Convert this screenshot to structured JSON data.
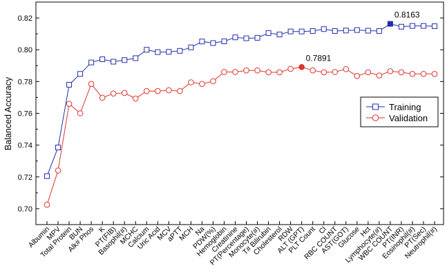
{
  "chart_data": {
    "type": "line",
    "ylabel": "Balanced Accuracy",
    "xlabel": "",
    "ylim": [
      0.69,
      0.83
    ],
    "yticks": [
      0.7,
      0.72,
      0.74,
      0.76,
      0.78,
      0.8,
      0.82
    ],
    "ytick_labels": [
      "0.70",
      "0.72",
      "0.74",
      "0.76",
      "0.78",
      "0.80",
      "0.82"
    ],
    "categories": [
      "Albumin",
      "MPV",
      "Total Protein",
      "BUN",
      "Alk# Phos",
      "K",
      "PT(FIB)",
      "Basophil(#)",
      "MCHC",
      "Calcium",
      "Uric Acid",
      "MCV",
      "aPTT",
      "MCH",
      "Na",
      "PDW(%)",
      "Hemoglobin",
      "Creatinine",
      "PT(Percentage)",
      "Monocyte(#)",
      "T# Bilirubin",
      "Cholesterol",
      "RDW",
      "ALT (GPT)",
      "PLT Count",
      "Cl",
      "RBC COUNT",
      "AST(GOT)",
      "Glucose",
      "Hct",
      "Lymphocyte(#)",
      "WBC COUNT",
      "PT(INR)",
      "Eosinophil(#)",
      "PT(Sec)",
      "Neutrophil(#)"
    ],
    "series": [
      {
        "name": "Training",
        "color": "#1f2fa8",
        "marker": "square",
        "values": [
          0.7205,
          0.7385,
          0.778,
          0.7848,
          0.792,
          0.794,
          0.7925,
          0.7935,
          0.7947,
          0.8,
          0.7985,
          0.7987,
          0.7993,
          0.8015,
          0.8052,
          0.8042,
          0.8053,
          0.8078,
          0.8072,
          0.8075,
          0.8105,
          0.8096,
          0.8115,
          0.8115,
          0.8118,
          0.813,
          0.8118,
          0.8121,
          0.8124,
          0.812,
          0.8118,
          0.8163,
          0.8145,
          0.815,
          0.815,
          0.8148
        ],
        "highlight_index": 31,
        "highlight_label": "0.8163"
      },
      {
        "name": "Validation",
        "color": "#e0322a",
        "marker": "circle",
        "values": [
          0.7025,
          0.724,
          0.766,
          0.76,
          0.7785,
          0.7698,
          0.7725,
          0.7728,
          0.7693,
          0.774,
          0.774,
          0.7745,
          0.774,
          0.7795,
          0.7785,
          0.7802,
          0.786,
          0.786,
          0.787,
          0.787,
          0.7858,
          0.7858,
          0.788,
          0.7891,
          0.787,
          0.7858,
          0.786,
          0.7878,
          0.7835,
          0.7858,
          0.7838,
          0.7865,
          0.7858,
          0.7848,
          0.7848,
          0.7848
        ],
        "highlight_index": 23,
        "highlight_label": "0.7891"
      }
    ],
    "legend_position": "right"
  }
}
